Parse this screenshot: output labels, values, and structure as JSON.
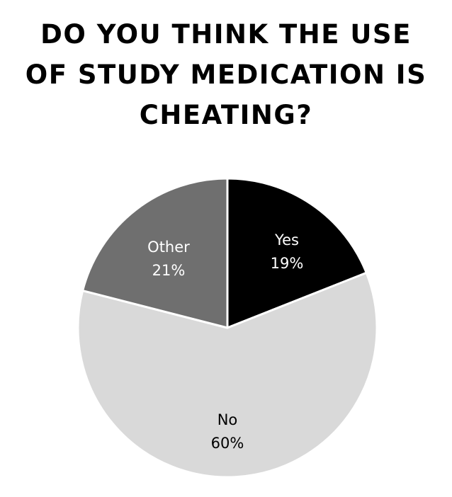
{
  "chart_data": {
    "type": "pie",
    "title": "DO YOU THINK THE USE OF STUDY MEDICATION IS CHEATING?",
    "title_lines": [
      "DO YOU THINK THE USE",
      "OF STUDY MEDICATION IS",
      "CHEATING?"
    ],
    "slices": [
      {
        "label": "Yes",
        "value": 19,
        "value_label": "19%",
        "color": "#000000",
        "text_color": "#ffffff"
      },
      {
        "label": "No",
        "value": 60,
        "value_label": "60%",
        "color": "#d9d9d9",
        "text_color": "#000000"
      },
      {
        "label": "Other",
        "value": 21,
        "value_label": "21%",
        "color": "#6f6f6f",
        "text_color": "#ffffff"
      }
    ],
    "start_angle": "12 o'clock",
    "direction": "clockwise",
    "legend": "none",
    "slice_border_color": "#ffffff"
  }
}
